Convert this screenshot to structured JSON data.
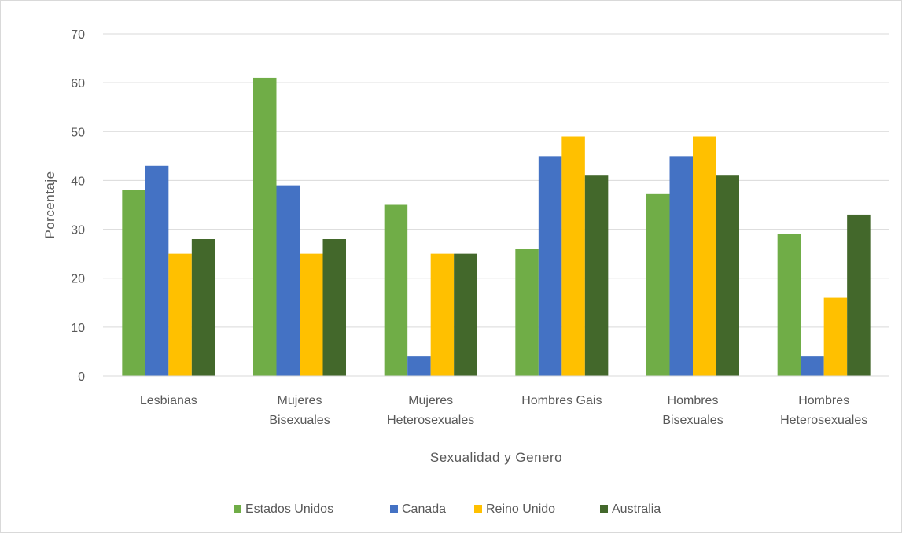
{
  "chart_data": {
    "type": "bar",
    "title": "",
    "xlabel": "Sexualidad y Genero",
    "ylabel": "Porcentaje",
    "ylim": [
      0,
      70
    ],
    "yticks": [
      0,
      10,
      20,
      30,
      40,
      50,
      60,
      70
    ],
    "grid": true,
    "legend_position": "bottom",
    "categories": [
      [
        "Lesbianas"
      ],
      [
        "Mujeres",
        "Bisexuales"
      ],
      [
        "Mujeres",
        "Heterosexuales"
      ],
      [
        "Hombres Gais"
      ],
      [
        "Hombres",
        "Bisexuales"
      ],
      [
        "Hombres",
        "Heterosexuales"
      ]
    ],
    "series": [
      {
        "name": "Estados Unidos",
        "color": "#70ad47",
        "values": [
          38,
          61,
          35,
          26,
          37.2,
          29
        ]
      },
      {
        "name": "Canada",
        "color": "#4472c4",
        "values": [
          43,
          39,
          4,
          45,
          45,
          4
        ]
      },
      {
        "name": "Reino Unido",
        "color": "#ffc000",
        "values": [
          25,
          25,
          25,
          49,
          49,
          16
        ]
      },
      {
        "name": "Australia",
        "color": "#43682b",
        "values": [
          28,
          28,
          25,
          41,
          41,
          33
        ]
      }
    ]
  }
}
